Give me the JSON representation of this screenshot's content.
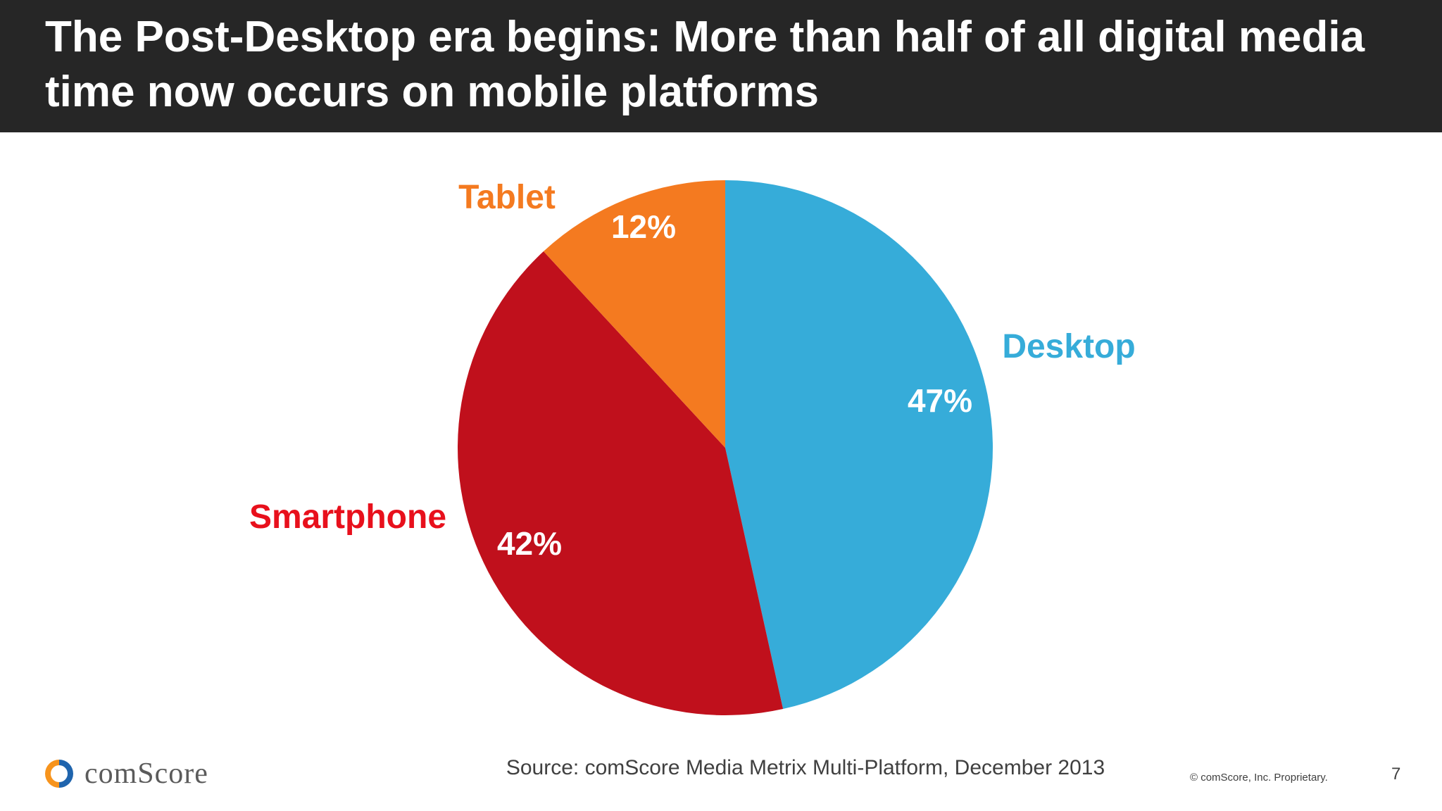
{
  "header": {
    "title": "The Post-Desktop era begins: More than half of all digital media time now occurs on mobile platforms"
  },
  "chart_data": {
    "type": "pie",
    "title": "",
    "slices": [
      {
        "name": "Desktop",
        "value": 47,
        "value_label": "47%",
        "color": "#36acd9"
      },
      {
        "name": "Smartphone",
        "value": 42,
        "value_label": "42%",
        "color": "#c0101c"
      },
      {
        "name": "Tablet",
        "value": 12,
        "value_label": "12%",
        "color": "#f47a20"
      }
    ],
    "category_label_colors": {
      "Desktop": "#36acd9",
      "Smartphone": "#e8101c",
      "Tablet": "#f47a20"
    }
  },
  "footer": {
    "source": "Source: comScore Media Metrix Multi-Platform, December 2013",
    "copyright": "© comScore, Inc. Proprietary.",
    "page_number": "7",
    "logo_text": "comScore",
    "logo_colors": {
      "orange": "#f7941d",
      "blue": "#1f64ad"
    }
  }
}
